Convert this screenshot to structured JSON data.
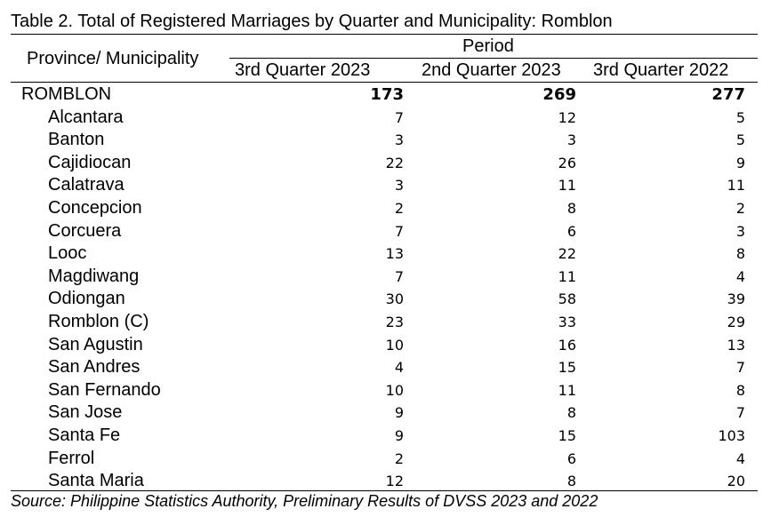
{
  "title": "Table 2. Total of Registered Marriages by Quarter and Municipality: Romblon",
  "header": {
    "row_label": "Province/ Municipality",
    "group_label": "Period",
    "columns": [
      "3rd Quarter 2023",
      "2nd Quarter 2023",
      "3rd Quarter 2022"
    ]
  },
  "rows": [
    {
      "name": "ROMBLON",
      "values": [
        "173",
        "269",
        "277"
      ]
    },
    {
      "name": "Alcantara",
      "values": [
        "7",
        "12",
        "5"
      ]
    },
    {
      "name": "Banton",
      "values": [
        "3",
        "3",
        "5"
      ]
    },
    {
      "name": "Cajidiocan",
      "values": [
        "22",
        "26",
        "9"
      ]
    },
    {
      "name": "Calatrava",
      "values": [
        "3",
        "11",
        "11"
      ]
    },
    {
      "name": "Concepcion",
      "values": [
        "2",
        "8",
        "2"
      ]
    },
    {
      "name": "Corcuera",
      "values": [
        "7",
        "6",
        "3"
      ]
    },
    {
      "name": "Looc",
      "values": [
        "13",
        "22",
        "8"
      ]
    },
    {
      "name": "Magdiwang",
      "values": [
        "7",
        "11",
        "4"
      ]
    },
    {
      "name": "Odiongan",
      "values": [
        "30",
        "58",
        "39"
      ]
    },
    {
      "name": "Romblon (C)",
      "values": [
        "23",
        "33",
        "29"
      ]
    },
    {
      "name": "San Agustin",
      "values": [
        "10",
        "16",
        "13"
      ]
    },
    {
      "name": "San Andres",
      "values": [
        "4",
        "15",
        "7"
      ]
    },
    {
      "name": "San Fernando",
      "values": [
        "10",
        "11",
        "8"
      ]
    },
    {
      "name": "San Jose",
      "values": [
        "9",
        "8",
        "7"
      ]
    },
    {
      "name": "Santa Fe",
      "values": [
        "9",
        "15",
        "103"
      ]
    },
    {
      "name": "Ferrol",
      "values": [
        "2",
        "6",
        "4"
      ]
    },
    {
      "name": "Santa Maria",
      "values": [
        "12",
        "8",
        "20"
      ]
    }
  ],
  "source": "Source: Philippine Statistics Authority, Preliminary Results of DVSS 2023 and 2022"
}
